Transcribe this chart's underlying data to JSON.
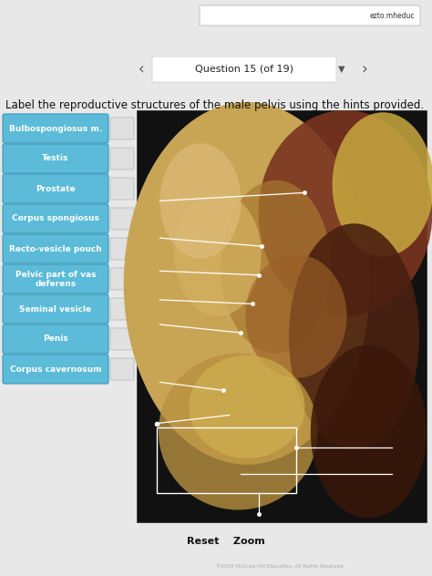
{
  "bg_color": "#e8e8e8",
  "top_bar_color": "#c0c0c0",
  "nav_bar_color": "#d5d5d5",
  "url_text": "ezto.mheduc",
  "header_text": "Question 15 (of 19)",
  "main_bg": "#ececec",
  "title_text": "Label the reproductive structures of the male pelvis using the hints provided.",
  "title_fontsize": 8.5,
  "title_color": "#111111",
  "buttons": [
    "Bulbospongiosus m.",
    "Testis",
    "Prostate",
    "Corpus spongiosus",
    "Recto-vesicle pouch",
    "Pelvic part of vas\ndeferens",
    "Seminal vesicle",
    "Penis",
    "Corpus cavernosum"
  ],
  "button_bg": "#5bbbd8",
  "button_text_color": "#ffffff",
  "button_border": "#3a9ab8",
  "button_fontsize": 6.5,
  "drop_box_color": "#e0e0e0",
  "drop_box_border": "#bbbbbb",
  "reset_zoom_text": "Reset    Zoom",
  "bottom_red_color": "#cc1111",
  "bottom_black_color": "#111111",
  "footer_text": "©2018 McGraw-Hill Education. All Rights Reserved.",
  "footer_color": "#aaaaaa",
  "img_bg": "#111111",
  "pointer_color": "#ffffff",
  "box_outline_color": "#ffffff"
}
